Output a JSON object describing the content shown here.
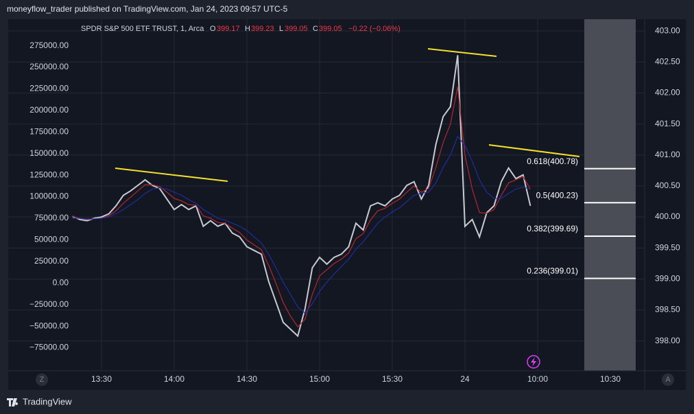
{
  "header": {
    "publisher": "moneyflow_trader published on TradingView.com, Jan 24, 2023 09:57 UTC-5"
  },
  "chart_data": {
    "type": "line",
    "legend": {
      "symbol": "SPDR S&P 500 ETF TRUST, 1, Arca",
      "o_label": "O",
      "o": "399.17",
      "h_label": "H",
      "h": "399.23",
      "l_label": "L",
      "l": "399.05",
      "c_label": "C",
      "c": "399.05",
      "change": "−0.22 (−0.06%)"
    },
    "categories": [
      null,
      null,
      null,
      null,
      "13:30",
      null,
      null,
      null,
      null,
      null,
      null,
      null,
      null,
      null,
      "14:00",
      null,
      null,
      null,
      null,
      null,
      null,
      null,
      null,
      null,
      "14:30",
      null,
      null,
      null,
      null,
      null,
      null,
      null,
      null,
      null,
      "15:00",
      null,
      null,
      null,
      null,
      null,
      null,
      null,
      null,
      null,
      "15:30",
      null,
      null,
      null,
      null,
      null,
      null,
      null,
      null,
      null,
      "24",
      null,
      null,
      null,
      null,
      null,
      null,
      null,
      null,
      null,
      "10:00",
      null,
      null,
      null,
      null,
      null,
      null,
      null,
      null,
      null,
      "10:30",
      null,
      null,
      null,
      null
    ],
    "series": [
      {
        "color": "#c9cbd1",
        "axis": "y2",
        "values": [
          400.01,
          399.96,
          399.94,
          399.98,
          400.0,
          400.05,
          400.18,
          400.35,
          400.42,
          400.51,
          400.6,
          400.51,
          400.46,
          400.29,
          400.12,
          400.2,
          400.12,
          400.18,
          399.85,
          399.94,
          399.85,
          399.9,
          399.74,
          399.68,
          399.52,
          399.46,
          399.4,
          398.96,
          398.63,
          398.3,
          398.19,
          398.08,
          398.52,
          399.18,
          399.35,
          399.24,
          399.35,
          399.4,
          399.52,
          399.9,
          399.79,
          400.18,
          400.23,
          400.18,
          400.29,
          400.35,
          400.51,
          400.57,
          400.29,
          400.51,
          401.17,
          401.62,
          401.78,
          402.61,
          399.85,
          399.96,
          399.68,
          400.07,
          400.18,
          400.57,
          400.79,
          400.62,
          400.68,
          400.18,
          null,
          null,
          null,
          null,
          null,
          null,
          null,
          null,
          null,
          null,
          null,
          null,
          null,
          null,
          null
        ]
      },
      {
        "color": "#b22833",
        "axis": "y2",
        "values": [
          400.01,
          399.98,
          399.96,
          399.97,
          399.98,
          400.02,
          400.1,
          400.22,
          400.32,
          400.42,
          400.52,
          400.52,
          400.49,
          400.4,
          400.3,
          400.26,
          400.2,
          400.19,
          400.02,
          399.98,
          399.91,
          399.9,
          399.82,
          399.75,
          399.63,
          399.55,
          399.47,
          399.22,
          398.93,
          398.62,
          398.4,
          398.23,
          398.35,
          398.75,
          399.05,
          399.15,
          399.25,
          399.32,
          399.42,
          399.65,
          399.73,
          399.95,
          400.1,
          400.14,
          400.22,
          400.29,
          400.4,
          400.5,
          400.4,
          400.46,
          400.8,
          401.2,
          401.5,
          402.1,
          401.0,
          400.45,
          400.07,
          400.06,
          400.12,
          400.35,
          400.55,
          400.6,
          400.65,
          400.45,
          null,
          null,
          null,
          null,
          null,
          null,
          null,
          null,
          null,
          null,
          null,
          null,
          null,
          null,
          null
        ]
      },
      {
        "color": "#1f2d9e",
        "axis": "y2",
        "values": [
          399.98,
          399.98,
          399.97,
          399.97,
          399.98,
          400.0,
          400.05,
          400.12,
          400.2,
          400.28,
          400.38,
          400.45,
          400.47,
          400.45,
          400.4,
          400.35,
          400.28,
          400.22,
          400.12,
          400.05,
          399.98,
          399.95,
          399.9,
          399.85,
          399.78,
          399.68,
          399.58,
          399.4,
          399.18,
          398.95,
          398.75,
          398.55,
          398.45,
          398.6,
          398.8,
          398.95,
          399.08,
          399.2,
          399.32,
          399.48,
          399.6,
          399.75,
          399.9,
          400.0,
          400.08,
          400.15,
          400.25,
          400.35,
          400.38,
          400.4,
          400.55,
          400.8,
          401.0,
          401.3,
          401.15,
          400.9,
          400.6,
          400.4,
          400.3,
          400.3,
          400.38,
          400.45,
          400.48,
          400.45,
          null,
          null,
          null,
          null,
          null,
          null,
          null,
          null,
          null,
          null,
          null,
          null,
          null,
          null,
          null
        ]
      }
    ],
    "ylim": [
      -101600,
      305700
    ],
    "yticks": [
      {
        "value": 275000,
        "label": "275000.00"
      },
      {
        "value": 250000,
        "label": "250000.00"
      },
      {
        "value": 225000,
        "label": "225000.00"
      },
      {
        "value": 200000,
        "label": "200000.00"
      },
      {
        "value": 175000,
        "label": "175000.00"
      },
      {
        "value": 150000,
        "label": "150000.00"
      },
      {
        "value": 125000,
        "label": "125000.00"
      },
      {
        "value": 100000,
        "label": "100000.00"
      },
      {
        "value": 75000,
        "label": "75000.00"
      },
      {
        "value": 50000,
        "label": "50000.00"
      },
      {
        "value": 25000,
        "label": "25000.00"
      },
      {
        "value": 0,
        "label": "0.00"
      },
      {
        "value": -25000,
        "label": "−25000.00"
      },
      {
        "value": -50000,
        "label": "−50000.00"
      },
      {
        "value": -75000,
        "label": "−75000.00"
      }
    ],
    "y2lim": [
      397.52,
      403.19
    ],
    "y2ticks": [
      {
        "value": 403,
        "label": "403.00"
      },
      {
        "value": 402.5,
        "label": "402.50"
      },
      {
        "value": 402,
        "label": "402.00"
      },
      {
        "value": 401.5,
        "label": "401.50"
      },
      {
        "value": 401,
        "label": "401.00"
      },
      {
        "value": 400.5,
        "label": "400.50"
      },
      {
        "value": 400,
        "label": "400.00"
      },
      {
        "value": 399.5,
        "label": "399.50"
      },
      {
        "value": 399,
        "label": "399.00"
      },
      {
        "value": 398.5,
        "label": "398.50"
      },
      {
        "value": 398,
        "label": "398.00"
      }
    ],
    "grid": true,
    "fib_levels": [
      {
        "label": "0.618(400.78)",
        "value": 400.78
      },
      {
        "label": "0.5(400.23)",
        "value": 400.23
      },
      {
        "label": "0.382(399.69)",
        "value": 399.69
      },
      {
        "label": "0.236(399.01)",
        "value": 399.01
      }
    ]
  },
  "footer": {
    "left_button": "Z",
    "right_button": "A",
    "brand": "TradingView"
  }
}
